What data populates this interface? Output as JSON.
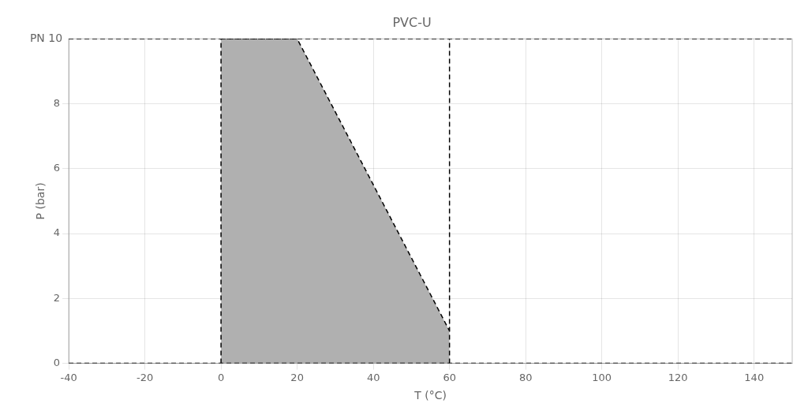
{
  "chart_data": {
    "type": "line",
    "title": "PVC-U",
    "x_label": "T (°C)",
    "y_label": "P (bar)",
    "xlim": [
      -40,
      150
    ],
    "ylim": [
      0,
      10
    ],
    "xticks": [
      -40,
      -20,
      0,
      20,
      40,
      60,
      80,
      100,
      120,
      140
    ],
    "yticks": [
      0,
      2,
      4,
      6,
      8
    ],
    "grid": true,
    "series": [
      {
        "type": "area",
        "color": "#b0b0b0",
        "x": [
          0,
          0,
          20,
          60,
          60
        ],
        "values": [
          0,
          10,
          10,
          1,
          0
        ]
      },
      {
        "type": "line",
        "color": "#000000",
        "line_style": "dashed",
        "x": [
          0,
          20,
          60
        ],
        "values": [
          10,
          10,
          1
        ]
      }
    ],
    "reference_lines": {
      "x": [
        0,
        60
      ],
      "y": [
        0,
        10
      ],
      "color": "#000000",
      "line_style": "dashed"
    },
    "annotations": [
      {
        "text": "PN 10",
        "y": 10
      }
    ]
  }
}
